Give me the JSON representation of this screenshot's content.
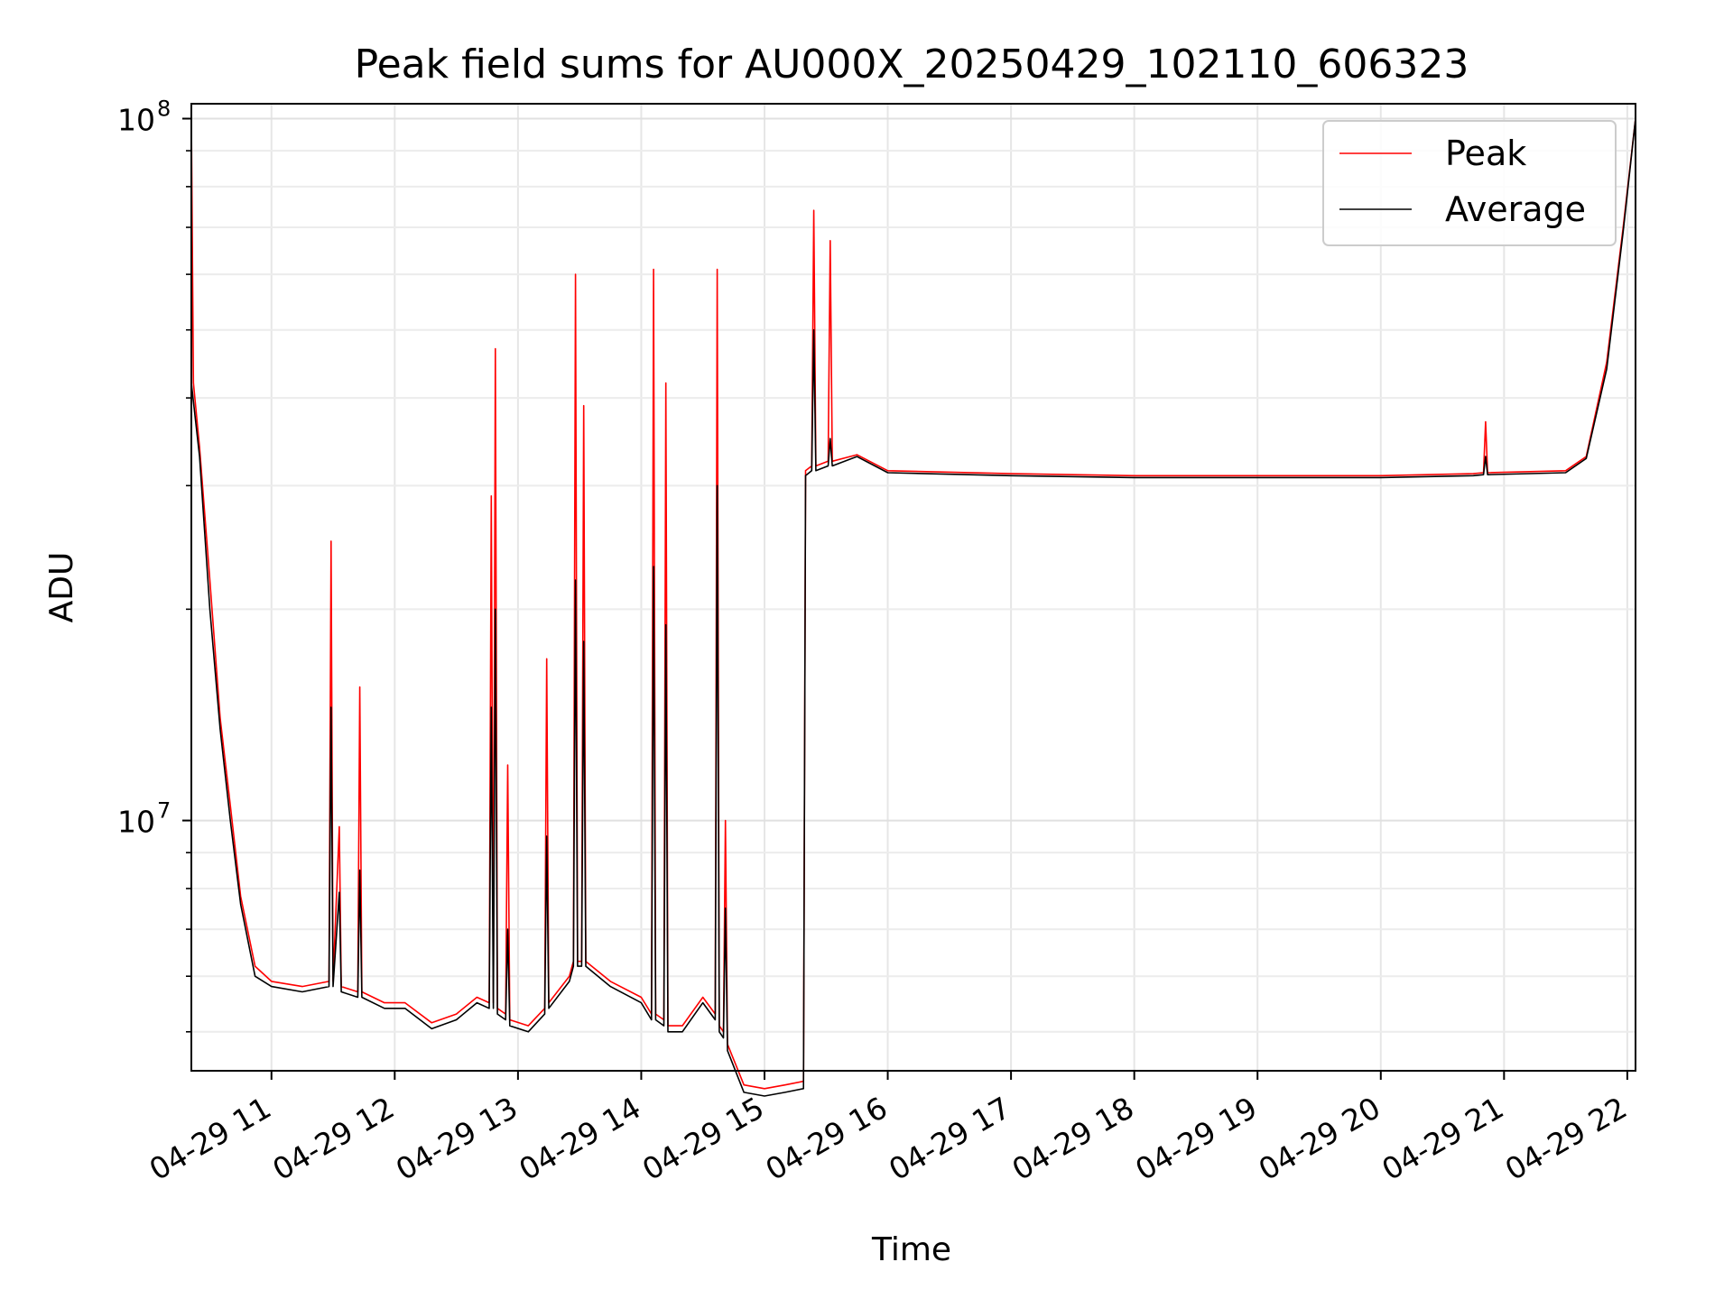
{
  "chart_data": {
    "type": "line",
    "title": "Peak field sums for AU000X_20250429_102110_606323",
    "xlabel": "Time",
    "ylabel": "ADU",
    "y_scale": "log",
    "ylim": [
      4400000,
      105000000
    ],
    "xlim": [
      "2025-04-29 10:21",
      "2025-04-29 22:04"
    ],
    "x_ticks": [
      "04-29 11",
      "04-29 12",
      "04-29 13",
      "04-29 14",
      "04-29 15",
      "04-29 16",
      "04-29 17",
      "04-29 18",
      "04-29 19",
      "04-29 20",
      "04-29 21",
      "04-29 22"
    ],
    "x_tick_times": [
      "2025-04-29 11:00",
      "2025-04-29 12:00",
      "2025-04-29 13:00",
      "2025-04-29 14:00",
      "2025-04-29 15:00",
      "2025-04-29 16:00",
      "2025-04-29 17:00",
      "2025-04-29 18:00",
      "2025-04-29 19:00",
      "2025-04-29 20:00",
      "2025-04-29 21:00",
      "2025-04-29 22:00"
    ],
    "y_ticks": [
      {
        "value": 10000000,
        "base": "10",
        "exp": "7"
      },
      {
        "value": 100000000,
        "base": "10",
        "exp": "8"
      }
    ],
    "grid": true,
    "legend_position": "top-right",
    "series": [
      {
        "name": "Peak",
        "color": "#ff0000",
        "points": [
          [
            "2025-04-29 10:21",
            100000000
          ],
          [
            "2025-04-29 10:22",
            42000000
          ],
          [
            "2025-04-29 10:25",
            34000000
          ],
          [
            "2025-04-29 10:30",
            22000000
          ],
          [
            "2025-04-29 10:35",
            14000000
          ],
          [
            "2025-04-29 10:40",
            10500000
          ],
          [
            "2025-04-29 10:45",
            7800000
          ],
          [
            "2025-04-29 10:52",
            6200000
          ],
          [
            "2025-04-29 11:00",
            5900000
          ],
          [
            "2025-04-29 11:15",
            5800000
          ],
          [
            "2025-04-29 11:28",
            5900000
          ],
          [
            "2025-04-29 11:29",
            25000000
          ],
          [
            "2025-04-29 11:30",
            5900000
          ],
          [
            "2025-04-29 11:33",
            9800000
          ],
          [
            "2025-04-29 11:34",
            5800000
          ],
          [
            "2025-04-29 11:42",
            5700000
          ],
          [
            "2025-04-29 11:43",
            15500000
          ],
          [
            "2025-04-29 11:44",
            5700000
          ],
          [
            "2025-04-29 11:55",
            5500000
          ],
          [
            "2025-04-29 12:05",
            5500000
          ],
          [
            "2025-04-29 12:18",
            5150000
          ],
          [
            "2025-04-29 12:30",
            5300000
          ],
          [
            "2025-04-29 12:40",
            5600000
          ],
          [
            "2025-04-29 12:46",
            5500000
          ],
          [
            "2025-04-29 12:47",
            29000000
          ],
          [
            "2025-04-29 12:48",
            5500000
          ],
          [
            "2025-04-29 12:49",
            47000000
          ],
          [
            "2025-04-29 12:50",
            5400000
          ],
          [
            "2025-04-29 12:54",
            5300000
          ],
          [
            "2025-04-29 12:55",
            12000000
          ],
          [
            "2025-04-29 12:56",
            5200000
          ],
          [
            "2025-04-29 13:05",
            5100000
          ],
          [
            "2025-04-29 13:13",
            5400000
          ],
          [
            "2025-04-29 13:14",
            17000000
          ],
          [
            "2025-04-29 13:15",
            5500000
          ],
          [
            "2025-04-29 13:25",
            6000000
          ],
          [
            "2025-04-29 13:27",
            6300000
          ],
          [
            "2025-04-29 13:28",
            60000000
          ],
          [
            "2025-04-29 13:29",
            6300000
          ],
          [
            "2025-04-29 13:31",
            6300000
          ],
          [
            "2025-04-29 13:32",
            39000000
          ],
          [
            "2025-04-29 13:33",
            6300000
          ],
          [
            "2025-04-29 13:45",
            5900000
          ],
          [
            "2025-04-29 14:00",
            5600000
          ],
          [
            "2025-04-29 14:05",
            5300000
          ],
          [
            "2025-04-29 14:06",
            61000000
          ],
          [
            "2025-04-29 14:07",
            5300000
          ],
          [
            "2025-04-29 14:11",
            5200000
          ],
          [
            "2025-04-29 14:12",
            42000000
          ],
          [
            "2025-04-29 14:13",
            5100000
          ],
          [
            "2025-04-29 14:20",
            5100000
          ],
          [
            "2025-04-29 14:30",
            5600000
          ],
          [
            "2025-04-29 14:36",
            5300000
          ],
          [
            "2025-04-29 14:37",
            61000000
          ],
          [
            "2025-04-29 14:38",
            5100000
          ],
          [
            "2025-04-29 14:40",
            5000000
          ],
          [
            "2025-04-29 14:41",
            10000000
          ],
          [
            "2025-04-29 14:42",
            4800000
          ],
          [
            "2025-04-29 14:50",
            4200000
          ],
          [
            "2025-04-29 15:00",
            4150000
          ],
          [
            "2025-04-29 15:10",
            4200000
          ],
          [
            "2025-04-29 15:19",
            4250000
          ],
          [
            "2025-04-29 15:20",
            31500000
          ],
          [
            "2025-04-29 15:23",
            32000000
          ],
          [
            "2025-04-29 15:24",
            74000000
          ],
          [
            "2025-04-29 15:25",
            32000000
          ],
          [
            "2025-04-29 15:31",
            32500000
          ],
          [
            "2025-04-29 15:32",
            67000000
          ],
          [
            "2025-04-29 15:33",
            32500000
          ],
          [
            "2025-04-29 15:45",
            33200000
          ],
          [
            "2025-04-29 16:00",
            31500000
          ],
          [
            "2025-04-29 17:00",
            31200000
          ],
          [
            "2025-04-29 18:00",
            31000000
          ],
          [
            "2025-04-29 19:00",
            31000000
          ],
          [
            "2025-04-29 20:00",
            31000000
          ],
          [
            "2025-04-29 20:45",
            31200000
          ],
          [
            "2025-04-29 20:50",
            31300000
          ],
          [
            "2025-04-29 20:51",
            37000000
          ],
          [
            "2025-04-29 20:52",
            31300000
          ],
          [
            "2025-04-29 21:30",
            31500000
          ],
          [
            "2025-04-29 21:40",
            33000000
          ],
          [
            "2025-04-29 21:50",
            45000000
          ],
          [
            "2025-04-29 21:58",
            70000000
          ],
          [
            "2025-04-29 22:04",
            100000000
          ]
        ]
      },
      {
        "name": "Average",
        "color": "#000000",
        "points": [
          [
            "2025-04-29 10:21",
            42000000
          ],
          [
            "2025-04-29 10:25",
            33000000
          ],
          [
            "2025-04-29 10:30",
            20000000
          ],
          [
            "2025-04-29 10:35",
            13500000
          ],
          [
            "2025-04-29 10:40",
            10000000
          ],
          [
            "2025-04-29 10:45",
            7600000
          ],
          [
            "2025-04-29 10:52",
            6000000
          ],
          [
            "2025-04-29 11:00",
            5800000
          ],
          [
            "2025-04-29 11:15",
            5700000
          ],
          [
            "2025-04-29 11:28",
            5800000
          ],
          [
            "2025-04-29 11:29",
            14500000
          ],
          [
            "2025-04-29 11:30",
            5800000
          ],
          [
            "2025-04-29 11:33",
            7900000
          ],
          [
            "2025-04-29 11:34",
            5700000
          ],
          [
            "2025-04-29 11:42",
            5600000
          ],
          [
            "2025-04-29 11:43",
            8500000
          ],
          [
            "2025-04-29 11:44",
            5600000
          ],
          [
            "2025-04-29 11:55",
            5400000
          ],
          [
            "2025-04-29 12:05",
            5400000
          ],
          [
            "2025-04-29 12:18",
            5050000
          ],
          [
            "2025-04-29 12:30",
            5200000
          ],
          [
            "2025-04-29 12:40",
            5500000
          ],
          [
            "2025-04-29 12:46",
            5400000
          ],
          [
            "2025-04-29 12:47",
            14500000
          ],
          [
            "2025-04-29 12:48",
            5400000
          ],
          [
            "2025-04-29 12:49",
            20000000
          ],
          [
            "2025-04-29 12:50",
            5300000
          ],
          [
            "2025-04-29 12:54",
            5200000
          ],
          [
            "2025-04-29 12:55",
            7000000
          ],
          [
            "2025-04-29 12:56",
            5100000
          ],
          [
            "2025-04-29 13:05",
            5000000
          ],
          [
            "2025-04-29 13:13",
            5300000
          ],
          [
            "2025-04-29 13:14",
            9500000
          ],
          [
            "2025-04-29 13:15",
            5400000
          ],
          [
            "2025-04-29 13:25",
            5900000
          ],
          [
            "2025-04-29 13:27",
            6200000
          ],
          [
            "2025-04-29 13:28",
            22000000
          ],
          [
            "2025-04-29 13:29",
            6200000
          ],
          [
            "2025-04-29 13:31",
            6200000
          ],
          [
            "2025-04-29 13:32",
            18000000
          ],
          [
            "2025-04-29 13:33",
            6200000
          ],
          [
            "2025-04-29 13:45",
            5800000
          ],
          [
            "2025-04-29 14:00",
            5500000
          ],
          [
            "2025-04-29 14:05",
            5200000
          ],
          [
            "2025-04-29 14:06",
            23000000
          ],
          [
            "2025-04-29 14:07",
            5200000
          ],
          [
            "2025-04-29 14:11",
            5100000
          ],
          [
            "2025-04-29 14:12",
            19000000
          ],
          [
            "2025-04-29 14:13",
            5000000
          ],
          [
            "2025-04-29 14:20",
            5000000
          ],
          [
            "2025-04-29 14:30",
            5500000
          ],
          [
            "2025-04-29 14:36",
            5200000
          ],
          [
            "2025-04-29 14:37",
            30000000
          ],
          [
            "2025-04-29 14:38",
            5000000
          ],
          [
            "2025-04-29 14:40",
            4900000
          ],
          [
            "2025-04-29 14:41",
            7500000
          ],
          [
            "2025-04-29 14:42",
            4700000
          ],
          [
            "2025-04-29 14:50",
            4100000
          ],
          [
            "2025-04-29 15:00",
            4050000
          ],
          [
            "2025-04-29 15:10",
            4100000
          ],
          [
            "2025-04-29 15:19",
            4150000
          ],
          [
            "2025-04-29 15:20",
            31000000
          ],
          [
            "2025-04-29 15:23",
            31500000
          ],
          [
            "2025-04-29 15:24",
            50000000
          ],
          [
            "2025-04-29 15:25",
            31500000
          ],
          [
            "2025-04-29 15:31",
            32000000
          ],
          [
            "2025-04-29 15:32",
            35000000
          ],
          [
            "2025-04-29 15:33",
            32000000
          ],
          [
            "2025-04-29 15:45",
            33000000
          ],
          [
            "2025-04-29 16:00",
            31300000
          ],
          [
            "2025-04-29 17:00",
            31000000
          ],
          [
            "2025-04-29 18:00",
            30800000
          ],
          [
            "2025-04-29 19:00",
            30800000
          ],
          [
            "2025-04-29 20:00",
            30800000
          ],
          [
            "2025-04-29 20:45",
            31000000
          ],
          [
            "2025-04-29 20:50",
            31100000
          ],
          [
            "2025-04-29 20:51",
            33000000
          ],
          [
            "2025-04-29 20:52",
            31100000
          ],
          [
            "2025-04-29 21:30",
            31300000
          ],
          [
            "2025-04-29 21:40",
            32800000
          ],
          [
            "2025-04-29 21:50",
            44000000
          ],
          [
            "2025-04-29 21:58",
            69000000
          ],
          [
            "2025-04-29 22:04",
            100000000
          ]
        ]
      }
    ]
  }
}
